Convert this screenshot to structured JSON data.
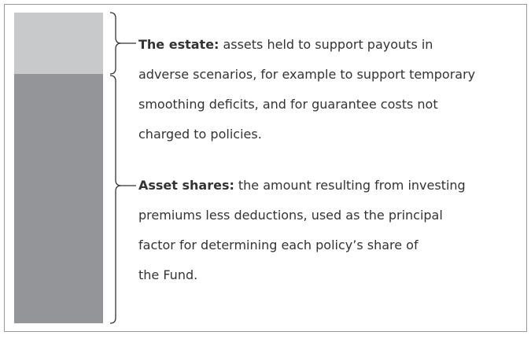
{
  "segments": [
    {
      "term": "The estate:",
      "lines": [
        "assets held to support payouts in",
        "adverse scenarios, for example to support temporary",
        "smoothing deficits, and for guarantee costs not",
        "charged to policies."
      ]
    },
    {
      "term": "Asset shares:",
      "lines": [
        "the amount resulting from investing",
        "premiums less deductions, used as the principal",
        "factor for determining each policy’s share of",
        "the Fund."
      ]
    }
  ]
}
